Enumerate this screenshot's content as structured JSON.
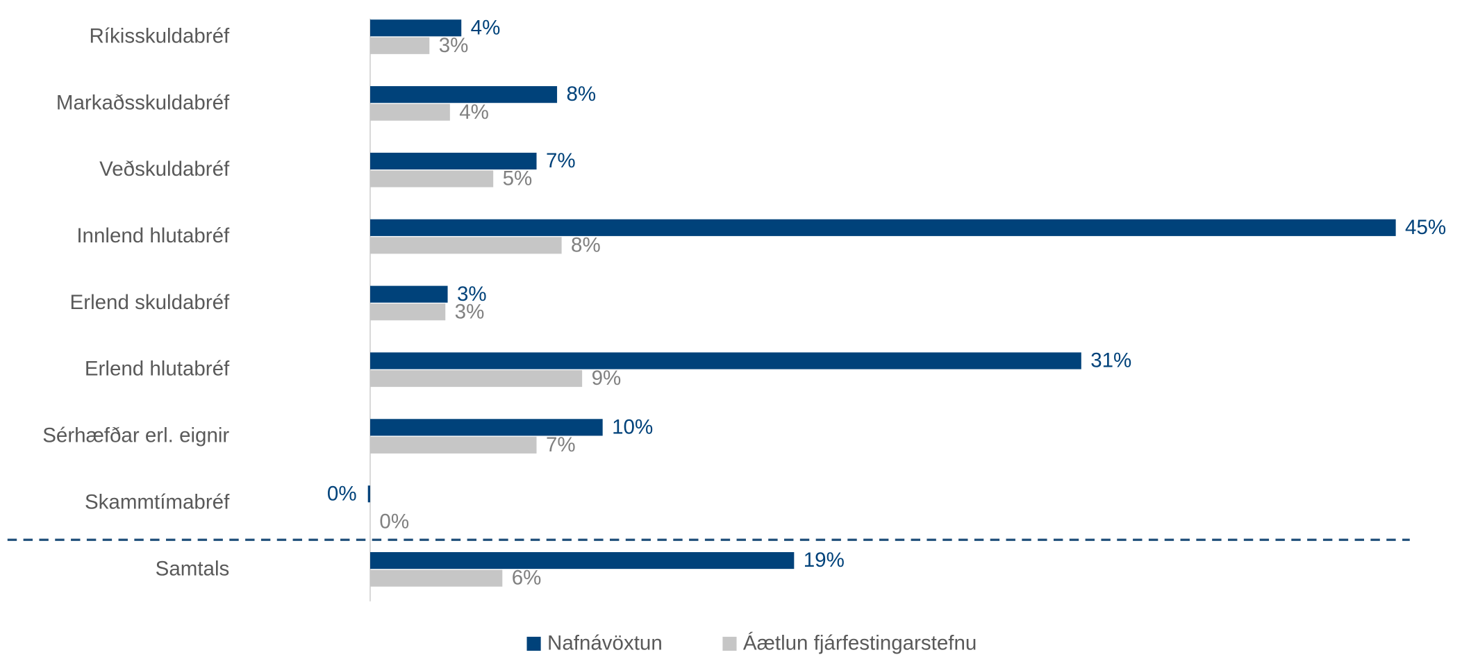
{
  "chart_data": {
    "type": "bar",
    "orientation": "horizontal",
    "categories": [
      "Ríkisskuldabréf",
      "Markaðsskuldabréf",
      "Veðskuldabréf",
      "Innlend hlutabréf",
      "Erlend skuldabréf",
      "Erlend hlutabréf",
      "Sérhæfðar erl. eignir",
      "Skammtímabréf",
      "Samtals"
    ],
    "series": [
      {
        "name": "Nafnávöxtun",
        "color": "#00427a",
        "label_color": "#00427a",
        "values": [
          4,
          8.2,
          7.3,
          45,
          3.4,
          31.2,
          10.2,
          -0.1,
          18.6
        ],
        "value_labels": [
          "4%",
          "8%",
          "7%",
          "45%",
          "3%",
          "31%",
          "10%",
          "0%",
          "19%"
        ]
      },
      {
        "name": "Áætlun fjárfestingarstefnu",
        "color": "#c6c6c6",
        "label_color": "#808080",
        "values": [
          2.6,
          3.5,
          5.4,
          8.4,
          3.3,
          9.3,
          7.3,
          0,
          5.8
        ],
        "value_labels": [
          "3%",
          "4%",
          "5%",
          "8%",
          "3%",
          "9%",
          "7%",
          "0%",
          "6%"
        ]
      }
    ],
    "xlim": [
      0,
      45
    ],
    "legend": "bottom"
  }
}
